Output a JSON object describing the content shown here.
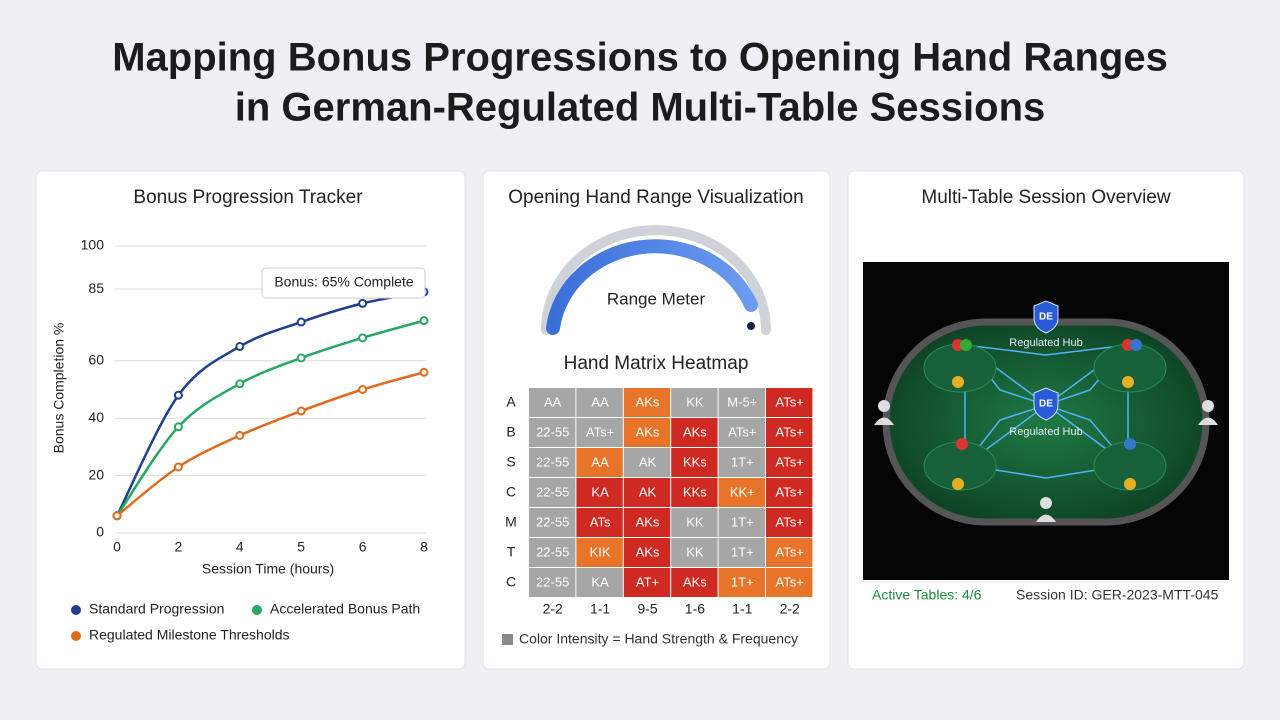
{
  "header": {
    "title_lines": [
      "Mapping Bonus Progressions to Opening Hand Ranges",
      "in German-Regulated Multi-Table Sessions"
    ]
  },
  "chart_data": {
    "type": "line",
    "title": "Bonus Progression Tracker",
    "x_label": "Session Time (hours)",
    "y_label": "Bonus Completion %",
    "categories": [
      "0",
      "2",
      "4",
      "5",
      "6",
      "8"
    ],
    "ylim": [
      0,
      100
    ],
    "yticks": [
      0,
      20,
      40,
      60,
      85,
      100
    ],
    "grid": true,
    "series": [
      {
        "name": "Standard Progression",
        "color": "#1f3f8f",
        "values": [
          6,
          48,
          65,
          73.5,
          80,
          84
        ]
      },
      {
        "name": "Accelerated Bonus Path",
        "color": "#27a862",
        "values": [
          6,
          37,
          52,
          61,
          68,
          74
        ]
      },
      {
        "name": "Regulated Milestone Thresholds",
        "color": "#e06a1f",
        "values": [
          6,
          23,
          34,
          42.5,
          50,
          56
        ]
      }
    ],
    "annotation": "Bonus: 65% Complete"
  },
  "range_panel": {
    "title": "Opening Hand Range Visualization",
    "gauge_label": "Range Meter",
    "heatmap_title": "Hand Matrix Heatmap",
    "column_labels": [
      "2-2",
      "1-1",
      "9-5",
      "1-6",
      "1-1",
      "2-2"
    ],
    "rows": [
      {
        "label": "A",
        "cells": [
          {
            "text": "AA",
            "color": "#a6a6a6"
          },
          {
            "text": "AA",
            "color": "#a6a6a6"
          },
          {
            "text": "AKs",
            "color": "#e8742a"
          },
          {
            "text": "KK",
            "color": "#a6a6a6"
          },
          {
            "text": "M-5+",
            "color": "#a6a6a6"
          },
          {
            "text": "ATs+",
            "color": "#cf2a22"
          }
        ]
      },
      {
        "label": "B",
        "cells": [
          {
            "text": "22-55",
            "color": "#a6a6a6"
          },
          {
            "text": "ATs+",
            "color": "#a6a6a6"
          },
          {
            "text": "AKs",
            "color": "#e8742a"
          },
          {
            "text": "AKs",
            "color": "#cf2a22"
          },
          {
            "text": "ATs+",
            "color": "#a6a6a6"
          },
          {
            "text": "ATs+",
            "color": "#cf2a22"
          }
        ]
      },
      {
        "label": "S",
        "cells": [
          {
            "text": "22-55",
            "color": "#a6a6a6"
          },
          {
            "text": "AA",
            "color": "#e8742a"
          },
          {
            "text": "AK",
            "color": "#a6a6a6"
          },
          {
            "text": "KKs",
            "color": "#cf2a22"
          },
          {
            "text": "1T+",
            "color": "#a6a6a6"
          },
          {
            "text": "ATs+",
            "color": "#cf2a22"
          }
        ]
      },
      {
        "label": "C",
        "cells": [
          {
            "text": "22-55",
            "color": "#a6a6a6"
          },
          {
            "text": "KA",
            "color": "#cf2a22"
          },
          {
            "text": "AK",
            "color": "#cf2a22"
          },
          {
            "text": "KKs",
            "color": "#cf2a22"
          },
          {
            "text": "KK+",
            "color": "#e8742a"
          },
          {
            "text": "ATs+",
            "color": "#cf2a22"
          }
        ]
      },
      {
        "label": "M",
        "cells": [
          {
            "text": "22-55",
            "color": "#a6a6a6"
          },
          {
            "text": "ATs",
            "color": "#cf2a22"
          },
          {
            "text": "AKs",
            "color": "#cf2a22"
          },
          {
            "text": "KK",
            "color": "#a6a6a6"
          },
          {
            "text": "1T+",
            "color": "#a6a6a6"
          },
          {
            "text": "ATs+",
            "color": "#cf2a22"
          }
        ]
      },
      {
        "label": "T",
        "cells": [
          {
            "text": "22-55",
            "color": "#a6a6a6"
          },
          {
            "text": "KIK",
            "color": "#e8742a"
          },
          {
            "text": "AKs",
            "color": "#cf2a22"
          },
          {
            "text": "KK",
            "color": "#a6a6a6"
          },
          {
            "text": "1T+",
            "color": "#a6a6a6"
          },
          {
            "text": "ATs+",
            "color": "#e8742a"
          }
        ]
      },
      {
        "label": "C",
        "cells": [
          {
            "text": "22-55",
            "color": "#a6a6a6"
          },
          {
            "text": "KA",
            "color": "#a6a6a6"
          },
          {
            "text": "AT+",
            "color": "#cf2a22"
          },
          {
            "text": "AKs",
            "color": "#cf2a22"
          },
          {
            "text": "1T+",
            "color": "#e8742a"
          },
          {
            "text": "ATs+",
            "color": "#e8742a"
          }
        ]
      }
    ],
    "legend": "Color Intensity = Hand Strength & Frequency"
  },
  "session_panel": {
    "title": "Multi-Table Session Overview",
    "hub_badges": [
      "DE",
      "DE"
    ],
    "hub_labels": [
      "Regulated Hub",
      "Regulated Hub"
    ],
    "active_tables": "Active Tables: 4/6",
    "session_id": "Session ID: GER-2023-MTT-045"
  }
}
